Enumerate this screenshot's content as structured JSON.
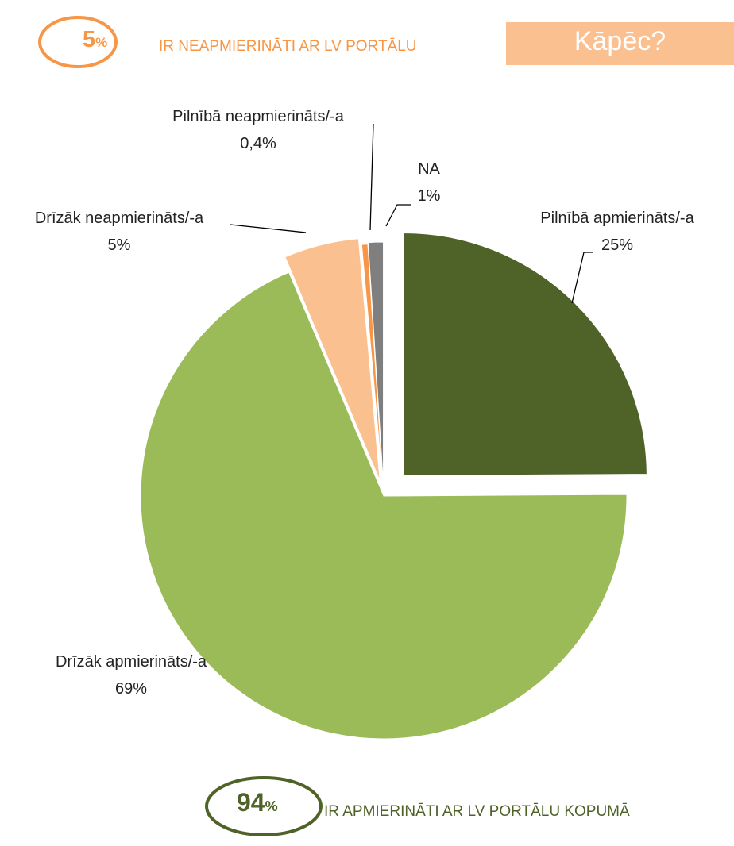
{
  "chart_data": {
    "type": "pie",
    "categories": [
      "Pilnībā apmierināts/-a",
      "Drīzāk apmierināts/-a",
      "Drīzāk neapmierināts/-a",
      "Pilnībā neapmierināts/-a",
      "NA"
    ],
    "values": [
      25,
      69,
      5,
      0.4,
      1
    ],
    "value_labels": [
      "25%",
      "69%",
      "5%",
      "0,4%",
      "1%"
    ],
    "colors": [
      "#4f6228",
      "#9bbb59",
      "#fac090",
      "#f79646",
      "#7f7f7f"
    ]
  },
  "top_banner": {
    "number": "5",
    "unit": "%",
    "prefix": "IR",
    "emphasis": "NEAPMIERINĀTI",
    "suffix": "AR LV PORTĀLU",
    "button": "Kāpēc?"
  },
  "bottom_banner": {
    "number": "94",
    "unit": "%",
    "prefix": "IR",
    "emphasis": "APMIERINĀTI",
    "suffix": "AR LV PORTĀLU KOPUMĀ"
  }
}
